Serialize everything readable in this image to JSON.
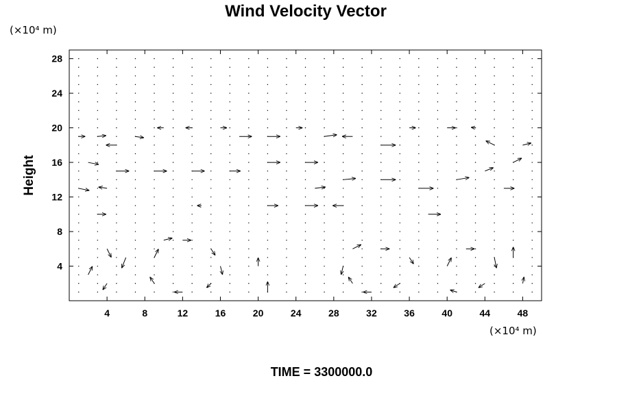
{
  "chart_data": {
    "type": "vector-field",
    "title": "Wind Velocity Vector",
    "ylabel": "Height",
    "xunit": "(×10⁴ m)",
    "yunit": "(×10⁴ m)",
    "xlim": [
      0,
      50
    ],
    "ylim": [
      0,
      29
    ],
    "xticks": [
      "4",
      "8",
      "12",
      "16",
      "20",
      "24",
      "28",
      "32",
      "36",
      "40",
      "44",
      "48"
    ],
    "yticks": [
      "4",
      "8",
      "12",
      "16",
      "20",
      "24",
      "28"
    ],
    "grid": false,
    "footer": "TIME = 3300000.0",
    "vectors": [
      {
        "x": 1,
        "y": 19,
        "u": 1.5,
        "v": 0
      },
      {
        "x": 3,
        "y": 19,
        "u": 2,
        "v": 0.2
      },
      {
        "x": 5,
        "y": 18,
        "u": -2.5,
        "v": 0
      },
      {
        "x": 7,
        "y": 19,
        "u": 2,
        "v": -0.3
      },
      {
        "x": 10,
        "y": 20,
        "u": -1.5,
        "v": 0
      },
      {
        "x": 13,
        "y": 20,
        "u": -1.5,
        "v": 0
      },
      {
        "x": 16,
        "y": 20,
        "u": 1.5,
        "v": 0
      },
      {
        "x": 18,
        "y": 19,
        "u": 3,
        "v": 0
      },
      {
        "x": 21,
        "y": 19,
        "u": 3,
        "v": 0
      },
      {
        "x": 24,
        "y": 20,
        "u": 1.5,
        "v": 0
      },
      {
        "x": 27,
        "y": 19,
        "u": 3,
        "v": 0.4
      },
      {
        "x": 30,
        "y": 19,
        "u": -2.5,
        "v": 0
      },
      {
        "x": 33,
        "y": 18,
        "u": 3.5,
        "v": 0
      },
      {
        "x": 36,
        "y": 20,
        "u": 1.5,
        "v": 0
      },
      {
        "x": 40,
        "y": 20,
        "u": 2,
        "v": 0
      },
      {
        "x": 43,
        "y": 20,
        "u": -1,
        "v": 0.1
      },
      {
        "x": 45,
        "y": 18,
        "u": -2,
        "v": 1
      },
      {
        "x": 48,
        "y": 18,
        "u": 2,
        "v": 0.5
      },
      {
        "x": 2,
        "y": 16,
        "u": 2.5,
        "v": -0.5
      },
      {
        "x": 5,
        "y": 15,
        "u": 3,
        "v": 0
      },
      {
        "x": 9,
        "y": 15,
        "u": 3,
        "v": 0
      },
      {
        "x": 13,
        "y": 15,
        "u": 3,
        "v": 0
      },
      {
        "x": 17,
        "y": 15,
        "u": 2.5,
        "v": 0
      },
      {
        "x": 21,
        "y": 16,
        "u": 3,
        "v": 0
      },
      {
        "x": 25,
        "y": 16,
        "u": 3,
        "v": 0
      },
      {
        "x": 29,
        "y": 14,
        "u": 3,
        "v": 0.3
      },
      {
        "x": 33,
        "y": 14,
        "u": 3.5,
        "v": 0
      },
      {
        "x": 37,
        "y": 13,
        "u": 3.5,
        "v": 0
      },
      {
        "x": 41,
        "y": 14,
        "u": 3,
        "v": 0.5
      },
      {
        "x": 44,
        "y": 15,
        "u": 2,
        "v": 0.8
      },
      {
        "x": 47,
        "y": 16,
        "u": 2,
        "v": 1
      },
      {
        "x": 1,
        "y": 13,
        "u": 2.5,
        "v": -0.5
      },
      {
        "x": 4,
        "y": 13,
        "u": -2,
        "v": 0.3
      },
      {
        "x": 26,
        "y": 13,
        "u": 2.5,
        "v": 0.3
      },
      {
        "x": 46,
        "y": 13,
        "u": 2.5,
        "v": 0
      },
      {
        "x": 14,
        "y": 11,
        "u": -1,
        "v": 0
      },
      {
        "x": 21,
        "y": 11,
        "u": 2.5,
        "v": 0
      },
      {
        "x": 25,
        "y": 11,
        "u": 3,
        "v": 0
      },
      {
        "x": 29,
        "y": 11,
        "u": -2.5,
        "v": 0
      },
      {
        "x": 3,
        "y": 10,
        "u": 2,
        "v": 0
      },
      {
        "x": 38,
        "y": 10,
        "u": 3,
        "v": 0
      },
      {
        "x": 4,
        "y": 6,
        "u": 1,
        "v": -2
      },
      {
        "x": 2,
        "y": 3,
        "u": 1,
        "v": 2
      },
      {
        "x": 4,
        "y": 2,
        "u": -1,
        "v": -1.5
      },
      {
        "x": 6,
        "y": 5,
        "u": -1,
        "v": -2.5
      },
      {
        "x": 9,
        "y": 5,
        "u": 1,
        "v": 2
      },
      {
        "x": 10,
        "y": 7,
        "u": 2,
        "v": 0.5
      },
      {
        "x": 12,
        "y": 7,
        "u": 2,
        "v": 0
      },
      {
        "x": 15,
        "y": 6,
        "u": 1,
        "v": -1.5
      },
      {
        "x": 16,
        "y": 4,
        "u": 0.5,
        "v": -2
      },
      {
        "x": 15,
        "y": 2,
        "u": -1,
        "v": -1
      },
      {
        "x": 12,
        "y": 1,
        "u": -2,
        "v": 0
      },
      {
        "x": 9,
        "y": 2,
        "u": -1,
        "v": 1.5
      },
      {
        "x": 20,
        "y": 4,
        "u": 0,
        "v": 2
      },
      {
        "x": 21,
        "y": 1,
        "u": 0,
        "v": 2.5
      },
      {
        "x": 29,
        "y": 4,
        "u": -0.5,
        "v": -2
      },
      {
        "x": 30,
        "y": 6,
        "u": 2,
        "v": 1
      },
      {
        "x": 33,
        "y": 6,
        "u": 2,
        "v": 0
      },
      {
        "x": 36,
        "y": 5,
        "u": 1,
        "v": -1.5
      },
      {
        "x": 35,
        "y": 2,
        "u": -1.5,
        "v": -1
      },
      {
        "x": 32,
        "y": 1,
        "u": -2,
        "v": 0
      },
      {
        "x": 30,
        "y": 2,
        "u": -1,
        "v": 1.5
      },
      {
        "x": 40,
        "y": 4,
        "u": 1,
        "v": 2
      },
      {
        "x": 42,
        "y": 6,
        "u": 2,
        "v": 0
      },
      {
        "x": 45,
        "y": 5,
        "u": 0.5,
        "v": -2.5
      },
      {
        "x": 44,
        "y": 2,
        "u": -1.5,
        "v": -1
      },
      {
        "x": 41,
        "y": 1,
        "u": -1.5,
        "v": 0.5
      },
      {
        "x": 47,
        "y": 5,
        "u": 0,
        "v": 2.5
      },
      {
        "x": 48,
        "y": 2,
        "u": 0.3,
        "v": 1.5
      }
    ]
  }
}
